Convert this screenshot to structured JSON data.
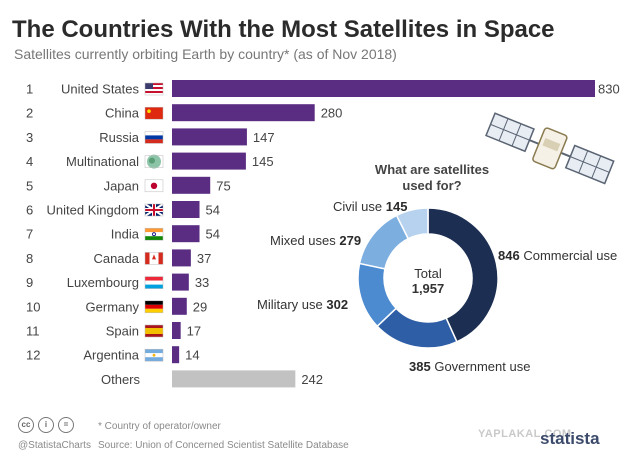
{
  "title": "The Countries With the Most Satellites in Space",
  "subtitle": "Satellites currently orbiting Earth by country* (as of Nov 2018)",
  "chart_data": [
    {
      "type": "bar",
      "orientation": "horizontal",
      "ranks": [
        "1",
        "2",
        "3",
        "4",
        "5",
        "6",
        "7",
        "8",
        "9",
        "10",
        "11",
        "12",
        ""
      ],
      "categories": [
        "United States",
        "China",
        "Russia",
        "Multinational",
        "Japan",
        "United Kingdom",
        "India",
        "Canada",
        "Luxembourg",
        "Germany",
        "Spain",
        "Argentina",
        "Others"
      ],
      "values": [
        830,
        280,
        147,
        145,
        75,
        54,
        54,
        37,
        33,
        29,
        17,
        14,
        242
      ],
      "bar_color": "#5a2d82",
      "others_color": "#c2c2c2"
    },
    {
      "type": "pie",
      "donut": true,
      "title_line1": "What are satellites",
      "title_line2": "used for?",
      "center_label": "Total",
      "center_value": "1,957",
      "slices": [
        {
          "name": "Commercial use",
          "value": 846,
          "label": "Commercial use",
          "color": "#1c2f52"
        },
        {
          "name": "Government use",
          "value": 385,
          "label": "Government use",
          "color": "#2e5fa6"
        },
        {
          "name": "Military use",
          "value": 302,
          "label": "Military use",
          "color": "#4d8bd0"
        },
        {
          "name": "Mixed uses",
          "value": 279,
          "label": "Mixed uses",
          "color": "#7daee0"
        },
        {
          "name": "Civil use",
          "value": 145,
          "label": "Civil use",
          "color": "#b7d2ee"
        }
      ]
    }
  ],
  "footer": {
    "note": "* Country of operator/owner",
    "handle": "@StatistaCharts",
    "source": "Source: Union of Concerned Scientist Satellite Database",
    "brand": "statista",
    "watermark": "YAPLAKAL.COM",
    "cc_icons": [
      "cc",
      "i",
      "="
    ]
  }
}
